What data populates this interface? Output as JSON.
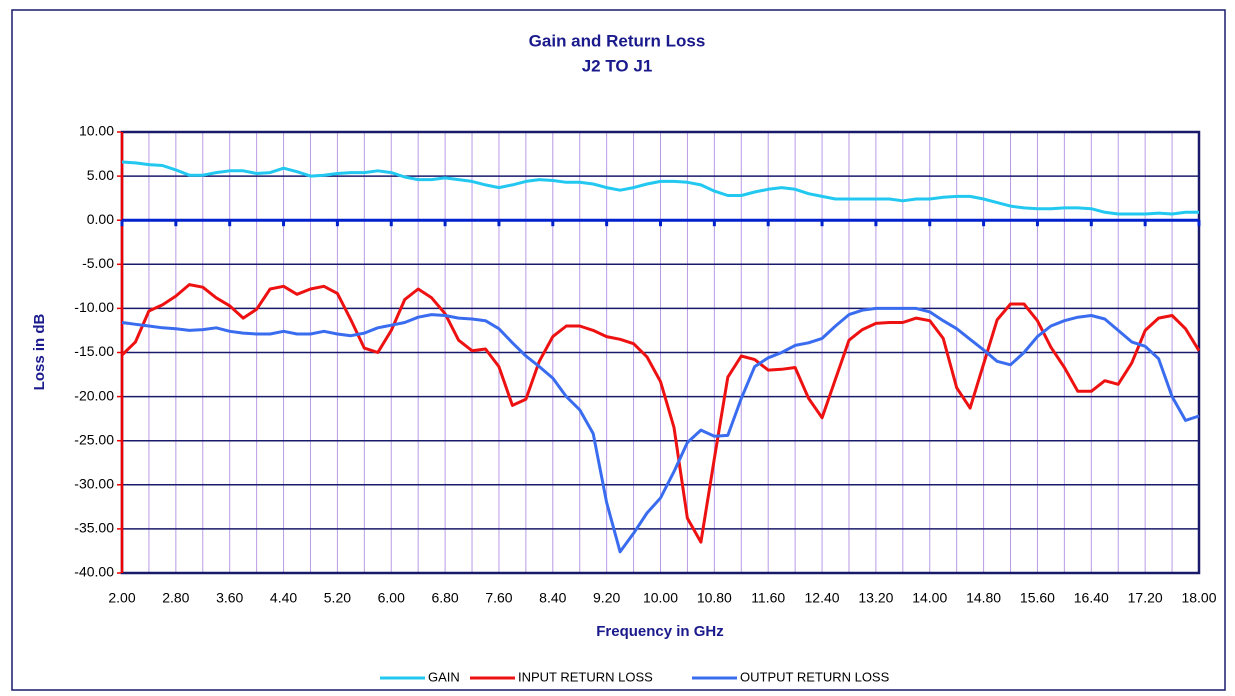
{
  "chart_data": {
    "type": "line",
    "title": "Gain and Return Loss",
    "subtitle": "J2 TO J1",
    "x_label": "Frequency in GHz",
    "y_label": "Loss in dB",
    "x": [
      2.0,
      2.2,
      2.4,
      2.6,
      2.8,
      3.0,
      3.2,
      3.4,
      3.6,
      3.8,
      4.0,
      4.2,
      4.4,
      4.6,
      4.8,
      5.0,
      5.2,
      5.4,
      5.6,
      5.8,
      6.0,
      6.2,
      6.4,
      6.6,
      6.8,
      7.0,
      7.2,
      7.4,
      7.6,
      7.8,
      8.0,
      8.2,
      8.4,
      8.6,
      8.8,
      9.0,
      9.2,
      9.4,
      9.6,
      9.8,
      10.0,
      10.2,
      10.4,
      10.6,
      10.8,
      11.0,
      11.2,
      11.4,
      11.6,
      11.8,
      12.0,
      12.2,
      12.4,
      12.6,
      12.8,
      13.0,
      13.2,
      13.4,
      13.6,
      13.8,
      14.0,
      14.2,
      14.4,
      14.6,
      14.8,
      15.0,
      15.2,
      15.4,
      15.6,
      15.8,
      16.0,
      16.2,
      16.4,
      16.6,
      16.8,
      17.0,
      17.2,
      17.4,
      17.6,
      17.8,
      18.0
    ],
    "series": [
      {
        "name": "GAIN",
        "color": "#22c8f0",
        "values": [
          6.6,
          6.5,
          6.3,
          6.2,
          5.7,
          5.1,
          5.1,
          5.4,
          5.6,
          5.6,
          5.3,
          5.4,
          5.9,
          5.5,
          5.0,
          5.1,
          5.3,
          5.4,
          5.4,
          5.6,
          5.4,
          4.9,
          4.6,
          4.6,
          4.8,
          4.6,
          4.4,
          4.0,
          3.7,
          4.0,
          4.4,
          4.6,
          4.5,
          4.3,
          4.3,
          4.1,
          3.7,
          3.4,
          3.7,
          4.1,
          4.4,
          4.4,
          4.3,
          4.0,
          3.3,
          2.8,
          2.8,
          3.2,
          3.5,
          3.7,
          3.5,
          3.0,
          2.7,
          2.4,
          2.4,
          2.4,
          2.4,
          2.4,
          2.2,
          2.4,
          2.4,
          2.6,
          2.7,
          2.7,
          2.4,
          2.0,
          1.6,
          1.4,
          1.3,
          1.3,
          1.4,
          1.4,
          1.3,
          0.9,
          0.7,
          0.7,
          0.7,
          0.8,
          0.7,
          0.9,
          0.9
        ]
      },
      {
        "name": "INPUT RETURN LOSS",
        "color": "#ee1111",
        "values": [
          -15.3,
          -13.8,
          -10.3,
          -9.6,
          -8.6,
          -7.3,
          -7.6,
          -8.8,
          -9.7,
          -11.1,
          -10.1,
          -7.8,
          -7.5,
          -8.4,
          -7.8,
          -7.5,
          -8.3,
          -11.3,
          -14.5,
          -15.0,
          -12.5,
          -9.0,
          -7.8,
          -8.8,
          -10.6,
          -13.6,
          -14.8,
          -14.6,
          -16.6,
          -21.0,
          -20.3,
          -16.0,
          -13.2,
          -12.0,
          -12.0,
          -12.5,
          -13.2,
          -13.5,
          -14.0,
          -15.5,
          -18.3,
          -23.5,
          -33.8,
          -36.5,
          -27.0,
          -17.8,
          -15.4,
          -15.8,
          -17.0,
          -16.9,
          -16.7,
          -20.2,
          -22.4,
          -18.0,
          -13.6,
          -12.4,
          -11.7,
          -11.6,
          -11.6,
          -11.1,
          -11.4,
          -13.4,
          -19.0,
          -21.3,
          -16.3,
          -11.3,
          -9.5,
          -9.5,
          -11.4,
          -14.4,
          -16.7,
          -19.4,
          -19.4,
          -18.2,
          -18.6,
          -16.2,
          -12.5,
          -11.1,
          -10.8,
          -12.3,
          -14.8
        ]
      },
      {
        "name": "OUTPUT RETURN LOSS",
        "color": "#3a6cf0",
        "values": [
          -11.6,
          -11.8,
          -12.0,
          -12.2,
          -12.3,
          -12.5,
          -12.4,
          -12.2,
          -12.6,
          -12.8,
          -12.9,
          -12.9,
          -12.6,
          -12.9,
          -12.9,
          -12.6,
          -12.9,
          -13.1,
          -12.8,
          -12.2,
          -11.9,
          -11.6,
          -11.0,
          -10.7,
          -10.8,
          -11.1,
          -11.2,
          -11.4,
          -12.3,
          -13.9,
          -15.4,
          -16.6,
          -17.9,
          -20.0,
          -21.5,
          -24.2,
          -32.0,
          -37.6,
          -35.5,
          -33.2,
          -31.5,
          -28.5,
          -25.2,
          -23.8,
          -24.5,
          -24.4,
          -20.2,
          -16.6,
          -15.6,
          -15.0,
          -14.2,
          -13.9,
          -13.4,
          -12.0,
          -10.7,
          -10.2,
          -10.0,
          -10.0,
          -10.0,
          -10.0,
          -10.4,
          -11.4,
          -12.3,
          -13.5,
          -14.7,
          -16.0,
          -16.4,
          -15.0,
          -13.2,
          -12.0,
          -11.4,
          -11.0,
          -10.8,
          -11.2,
          -12.5,
          -13.8,
          -14.3,
          -15.7,
          -20.0,
          -22.7,
          -22.2
        ]
      }
    ],
    "xlim": [
      2,
      18
    ],
    "ylim": [
      -40,
      10
    ],
    "xticks": [
      {
        "value": 2,
        "label": "2.00"
      },
      {
        "value": 2.8,
        "label": "2.80"
      },
      {
        "value": 3.6,
        "label": "3.60"
      },
      {
        "value": 4.4,
        "label": "4.40"
      },
      {
        "value": 5.2,
        "label": "5.20"
      },
      {
        "value": 6,
        "label": "6.00"
      },
      {
        "value": 6.8,
        "label": "6.80"
      },
      {
        "value": 7.6,
        "label": "7.60"
      },
      {
        "value": 8.4,
        "label": "8.40"
      },
      {
        "value": 9.2,
        "label": "9.20"
      },
      {
        "value": 10,
        "label": "10.00"
      },
      {
        "value": 10.8,
        "label": "10.80"
      },
      {
        "value": 11.6,
        "label": "11.60"
      },
      {
        "value": 12.4,
        "label": "12.40"
      },
      {
        "value": 13.2,
        "label": "13.20"
      },
      {
        "value": 14,
        "label": "14.00"
      },
      {
        "value": 14.8,
        "label": "14.80"
      },
      {
        "value": 15.6,
        "label": "15.60"
      },
      {
        "value": 16.4,
        "label": "16.40"
      },
      {
        "value": 17.2,
        "label": "17.20"
      },
      {
        "value": 18,
        "label": "18.00"
      }
    ],
    "xgrid": [
      2.4,
      2.8,
      3.2,
      3.6,
      4.0,
      4.4,
      4.8,
      5.2,
      5.6,
      6.0,
      6.4,
      6.8,
      7.2,
      7.6,
      8.0,
      8.4,
      8.8,
      9.2,
      9.6,
      10.0,
      10.4,
      10.8,
      11.2,
      11.6,
      12.0,
      12.4,
      12.8,
      13.2,
      13.6,
      14.0,
      14.4,
      14.8,
      15.2,
      15.6,
      16.0,
      16.4,
      16.8,
      17.2,
      17.6
    ],
    "yticks": [
      {
        "value": 10,
        "label": "10.00"
      },
      {
        "value": 5,
        "label": "5.00"
      },
      {
        "value": 0,
        "label": "0.00"
      },
      {
        "value": -5,
        "label": "-5.00"
      },
      {
        "value": -10,
        "label": "-10.00"
      },
      {
        "value": -15,
        "label": "-15.00"
      },
      {
        "value": -20,
        "label": "-20.00"
      },
      {
        "value": -25,
        "label": "-25.00"
      },
      {
        "value": -30,
        "label": "-30.00"
      },
      {
        "value": -35,
        "label": "-35.00"
      },
      {
        "value": -40,
        "label": "-40.00"
      }
    ],
    "grid": true,
    "legend": "bottom"
  }
}
